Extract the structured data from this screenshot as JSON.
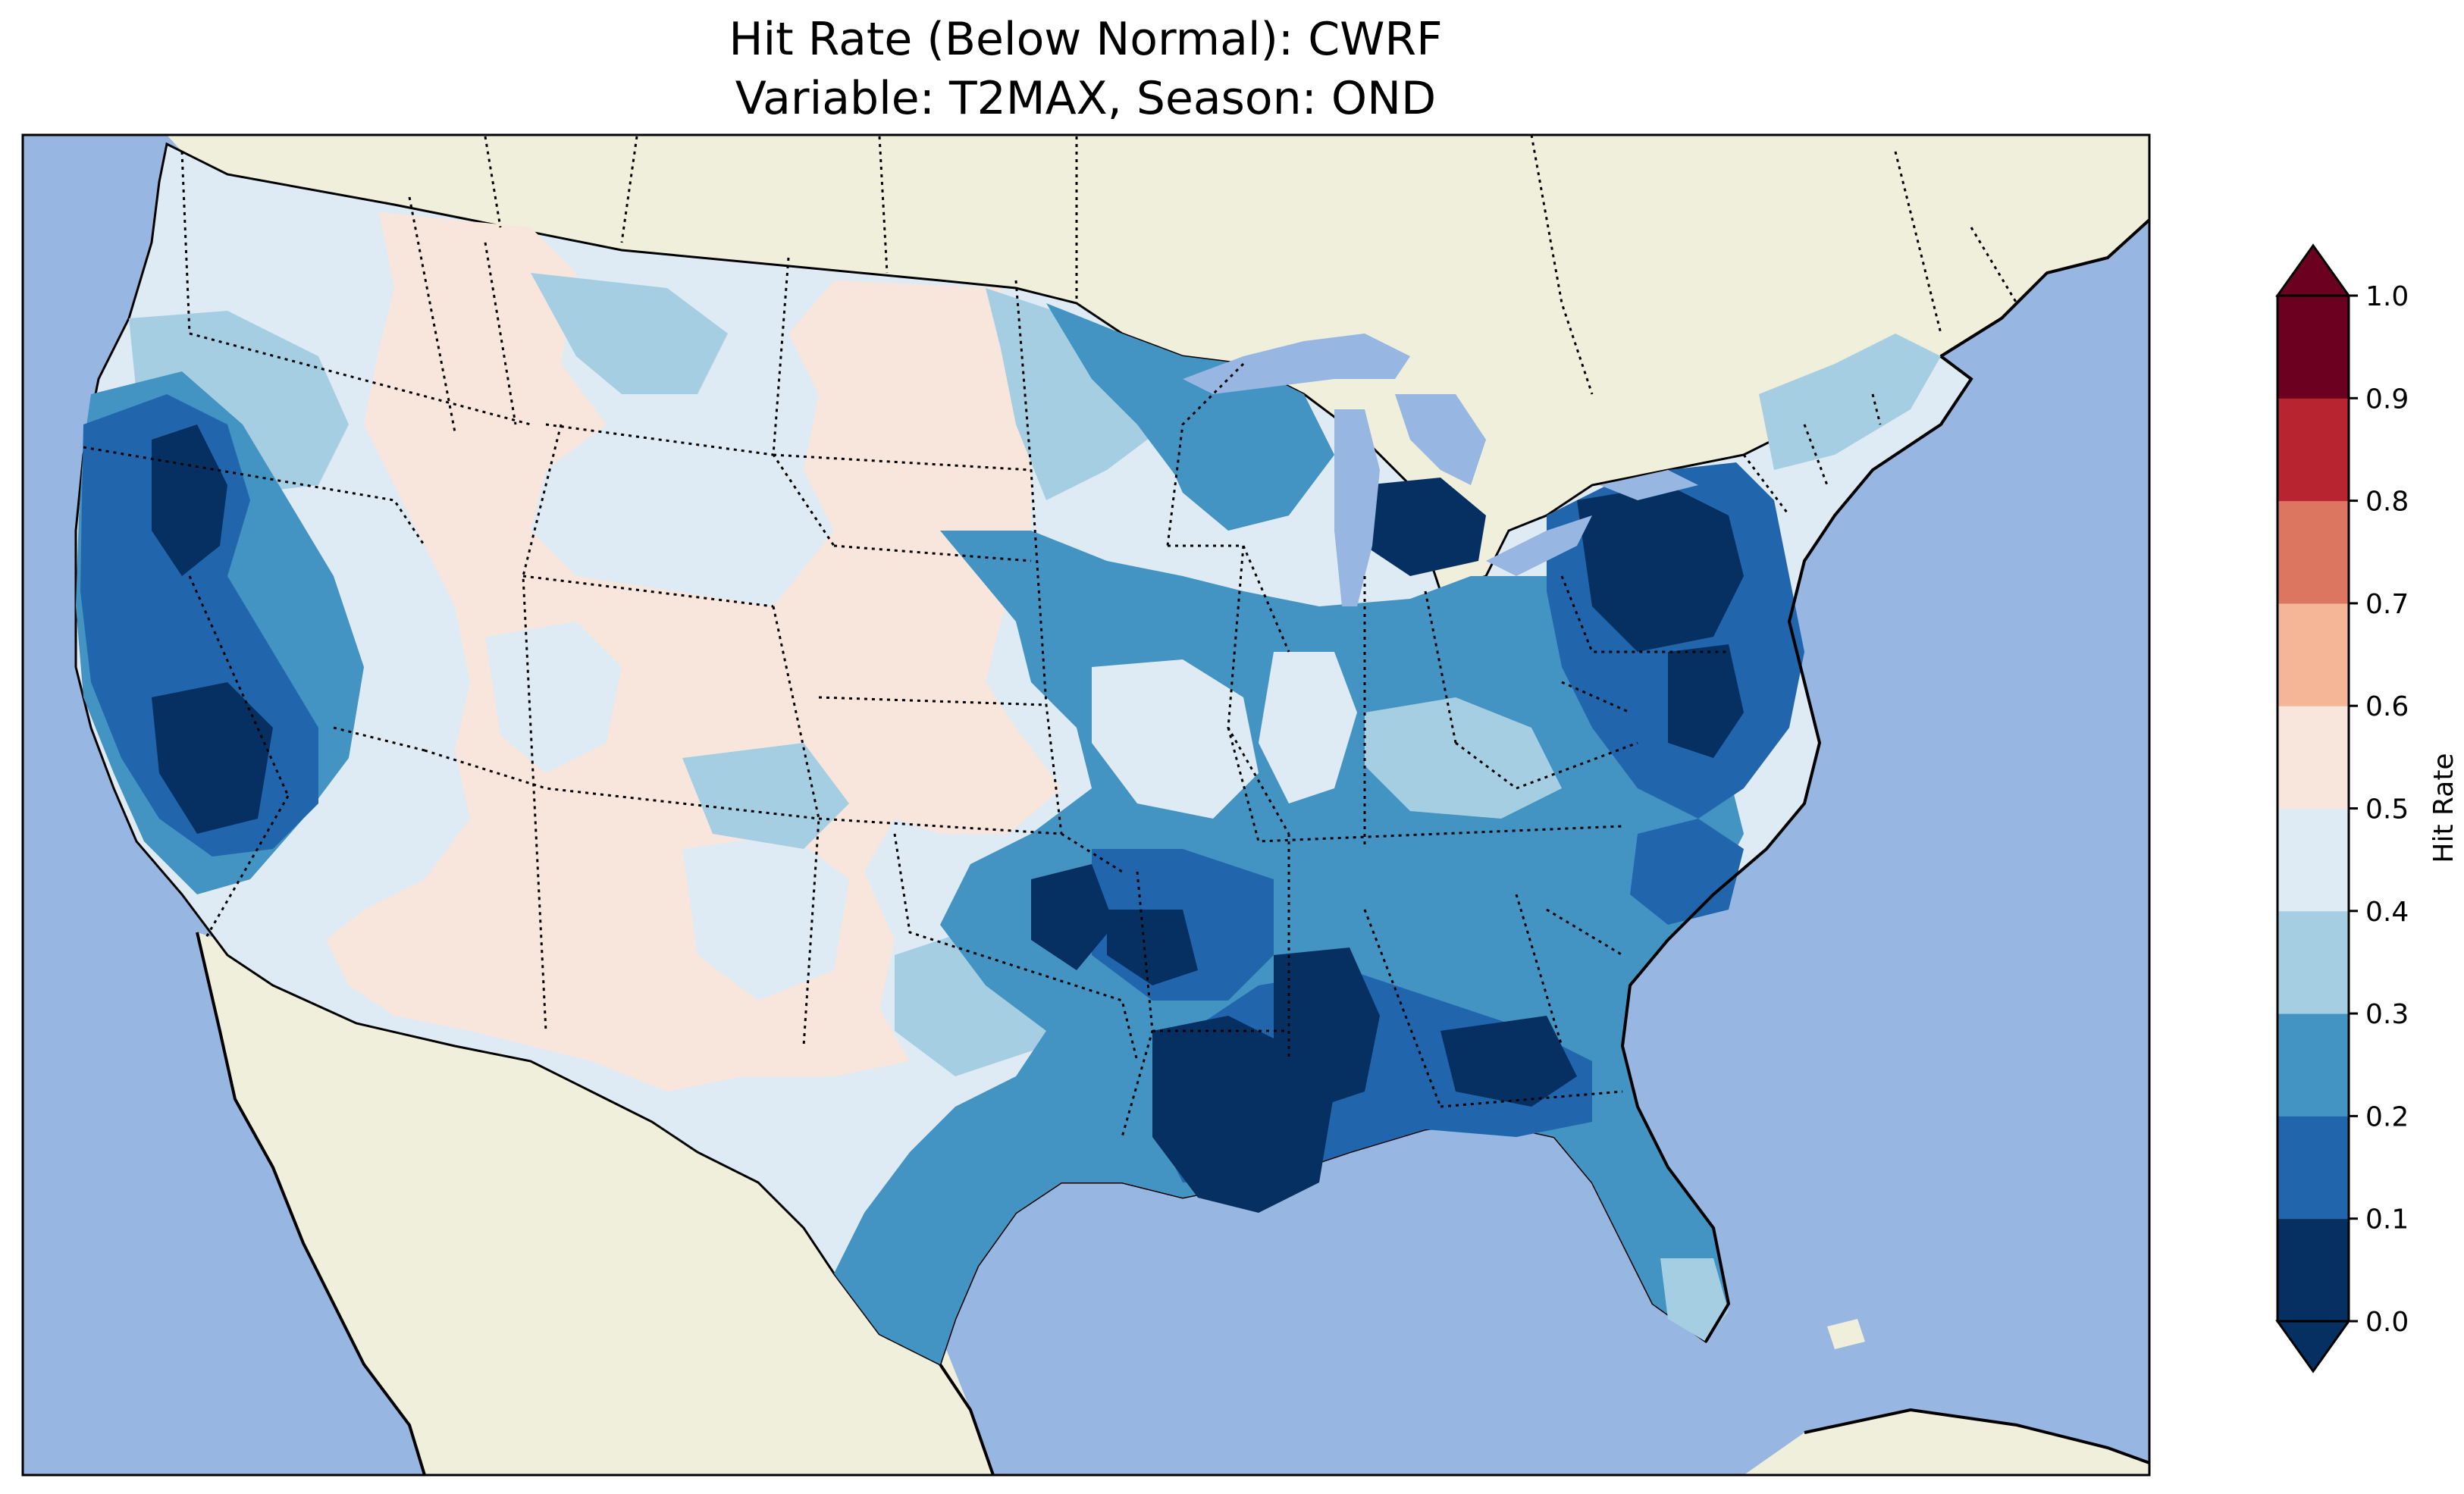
{
  "title": {
    "line1": "Hit Rate (Below Normal): CWRF",
    "line2": "Variable: T2MAX, Season: OND"
  },
  "map": {
    "colors": {
      "ocean": "#97b6e1",
      "land": "#efefdb",
      "coastline": "#000000",
      "state_border": "#000000"
    },
    "border_style": "dotted"
  },
  "colorbar": {
    "label": "Hit Rate",
    "extend": "both",
    "ticks": [
      "0.0",
      "0.1",
      "0.2",
      "0.3",
      "0.4",
      "0.5",
      "0.6",
      "0.7",
      "0.8",
      "0.9",
      "1.0"
    ],
    "bin_colors": [
      "#08306b",
      "#2166ac",
      "#4393c3",
      "#92c5de",
      "#d1e5f0",
      "#f7f7f7",
      "#fddbc7",
      "#f4a582",
      "#d6604d",
      "#b2182b",
      "#67001f"
    ],
    "palette": {
      "under": "#053061",
      "b00_01": "#053061",
      "b01_02": "#2166ac",
      "b02_03": "#4393c3",
      "b03_04": "#a6cee3",
      "b04_05": "#deebf4",
      "b05_06": "#f8e6dc",
      "b06_07": "#f4b697",
      "b07_08": "#dd7660",
      "b08_09": "#b82430",
      "b09_10": "#6b0020",
      "over": "#6b0020"
    }
  }
}
